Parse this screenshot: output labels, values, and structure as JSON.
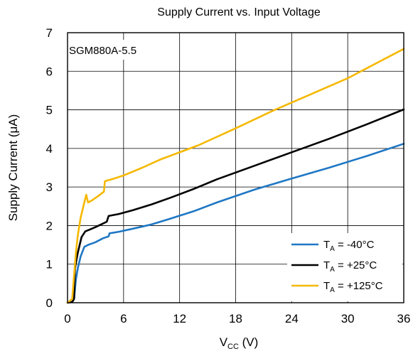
{
  "chart_data": {
    "type": "line",
    "title": "Supply Current vs. Input Voltage",
    "annotation": "SGM880A-5.5",
    "xlabel": {
      "main": "V",
      "sub": "CC",
      "unit": " (V)"
    },
    "ylabel": "Supply Current (μA)",
    "xlim": [
      0,
      36
    ],
    "ylim": [
      0,
      7
    ],
    "xticks": [
      0,
      6,
      12,
      18,
      24,
      30,
      36
    ],
    "yticks": [
      0,
      1,
      2,
      3,
      4,
      5,
      6,
      7
    ],
    "grid": true,
    "legend_position": "bottom-right",
    "series": [
      {
        "name": {
          "main": "T",
          "sub": "A",
          "rest": " = -40°C"
        },
        "color": "#1f77c4",
        "points": [
          [
            0,
            0
          ],
          [
            0.5,
            0.02
          ],
          [
            0.7,
            0.1
          ],
          [
            0.9,
            0.6
          ],
          [
            1.1,
            0.9
          ],
          [
            1.4,
            1.2
          ],
          [
            1.8,
            1.45
          ],
          [
            2.2,
            1.5
          ],
          [
            3,
            1.57
          ],
          [
            3.8,
            1.67
          ],
          [
            4.4,
            1.72
          ],
          [
            4.5,
            1.8
          ],
          [
            5.5,
            1.84
          ],
          [
            7,
            1.92
          ],
          [
            9,
            2.03
          ],
          [
            11,
            2.18
          ],
          [
            13.5,
            2.37
          ],
          [
            16,
            2.6
          ],
          [
            20,
            2.93
          ],
          [
            24,
            3.22
          ],
          [
            28,
            3.5
          ],
          [
            32,
            3.8
          ],
          [
            36,
            4.12
          ]
        ]
      },
      {
        "name": {
          "main": "T",
          "sub": "A",
          "rest": " = +25°C"
        },
        "color": "#000000",
        "points": [
          [
            0,
            0
          ],
          [
            0.5,
            0.02
          ],
          [
            0.7,
            0.1
          ],
          [
            0.8,
            0.9
          ],
          [
            1.1,
            1.3
          ],
          [
            1.5,
            1.7
          ],
          [
            1.9,
            1.85
          ],
          [
            2.4,
            1.9
          ],
          [
            3,
            1.96
          ],
          [
            3.6,
            2.03
          ],
          [
            4.2,
            2.1
          ],
          [
            4.4,
            2.25
          ],
          [
            5.5,
            2.3
          ],
          [
            7,
            2.4
          ],
          [
            9,
            2.55
          ],
          [
            11,
            2.72
          ],
          [
            13.5,
            2.95
          ],
          [
            16,
            3.2
          ],
          [
            20,
            3.55
          ],
          [
            24,
            3.9
          ],
          [
            28,
            4.25
          ],
          [
            32,
            4.62
          ],
          [
            36,
            5.01
          ]
        ]
      },
      {
        "name": {
          "main": "T",
          "sub": "A",
          "rest": " = +125°C"
        },
        "color": "#f5b800",
        "points": [
          [
            0,
            0
          ],
          [
            0.5,
            0.1
          ],
          [
            0.7,
            0.7
          ],
          [
            0.9,
            1.3
          ],
          [
            1.1,
            1.75
          ],
          [
            1.4,
            2.2
          ],
          [
            1.7,
            2.5
          ],
          [
            2.0,
            2.8
          ],
          [
            2.2,
            2.6
          ],
          [
            2.6,
            2.65
          ],
          [
            3.2,
            2.75
          ],
          [
            3.9,
            2.88
          ],
          [
            4.0,
            3.15
          ],
          [
            5,
            3.22
          ],
          [
            6,
            3.3
          ],
          [
            8,
            3.5
          ],
          [
            10,
            3.72
          ],
          [
            12,
            3.9
          ],
          [
            14,
            4.08
          ],
          [
            18,
            4.52
          ],
          [
            22,
            4.98
          ],
          [
            26,
            5.4
          ],
          [
            30,
            5.82
          ],
          [
            33,
            6.2
          ],
          [
            36,
            6.58
          ]
        ]
      }
    ]
  }
}
